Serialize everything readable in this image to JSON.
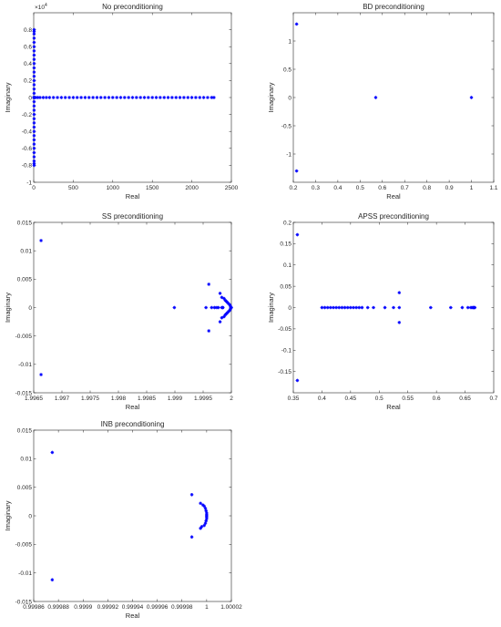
{
  "marker_color": "#0000ff",
  "chart_data": [
    {
      "type": "scatter",
      "title": "No preconditioning",
      "xlabel": "Real",
      "ylabel": "Imaginary",
      "xlim": [
        0,
        2500
      ],
      "ylim": [
        -10000,
        10000
      ],
      "xticks": [
        0,
        500,
        1000,
        1500,
        2000,
        2500
      ],
      "xtick_labels": [
        "0",
        "500",
        "1000",
        "1500",
        "2000",
        "2500"
      ],
      "yticks": [
        -10000,
        -8000,
        -6000,
        -4000,
        -2000,
        0,
        2000,
        4000,
        6000,
        8000
      ],
      "ytick_labels": [
        "-1",
        "-0.8",
        "-0.6",
        "-0.4",
        "-0.2",
        "0",
        "0.2",
        "0.4",
        "0.6",
        "0.8"
      ],
      "y_exponent": "10^4",
      "description_hint": "imaginary axis eigenvalues near Re≈0 spanning Im ±8000; real eigenvalues on Im=0 spanning Re 0–2300",
      "series": [
        {
          "x": [
            1,
            3,
            5,
            8,
            12,
            25,
            50,
            80,
            120,
            160,
            200,
            250,
            300,
            350,
            400,
            450,
            500,
            550,
            600,
            650,
            700,
            750,
            800,
            850,
            900,
            950,
            1000,
            1050,
            1100,
            1150,
            1200,
            1250,
            1300,
            1350,
            1400,
            1450,
            1500,
            1550,
            1600,
            1650,
            1700,
            1750,
            1800,
            1850,
            1900,
            1950,
            2000,
            2050,
            2100,
            2150,
            2200,
            2250,
            2280
          ],
          "y": [
            0,
            0,
            0,
            0,
            0,
            0,
            0,
            0,
            0,
            0,
            0,
            0,
            0,
            0,
            0,
            0,
            0,
            0,
            0,
            0,
            0,
            0,
            0,
            0,
            0,
            0,
            0,
            0,
            0,
            0,
            0,
            0,
            0,
            0,
            0,
            0,
            0,
            0,
            0,
            0,
            0,
            0,
            0,
            0,
            0,
            0,
            0,
            0,
            0,
            0,
            0,
            0,
            0
          ]
        },
        {
          "x": [
            5,
            5,
            5,
            5,
            5,
            5,
            5,
            5,
            5,
            5,
            5,
            5,
            5,
            5,
            5,
            5,
            5,
            5,
            5,
            5,
            5,
            5,
            5,
            5,
            5,
            5,
            5,
            5,
            5,
            5,
            5,
            5,
            5,
            5
          ],
          "y": [
            8000,
            7500,
            7000,
            6500,
            6000,
            5500,
            5000,
            4500,
            4000,
            3500,
            3000,
            2500,
            2000,
            1500,
            1000,
            500,
            -500,
            -1000,
            -1500,
            -2000,
            -2500,
            -3000,
            -3500,
            -4000,
            -4500,
            -5000,
            -5500,
            -6000,
            -6500,
            -7000,
            -7500,
            -8000,
            7800,
            -7800
          ]
        }
      ]
    },
    {
      "type": "scatter",
      "title": "BD preconditioning",
      "xlabel": "Real",
      "ylabel": "Imaginary",
      "xlim": [
        0.2,
        1.1
      ],
      "ylim": [
        -1.5,
        1.5
      ],
      "xticks": [
        0.2,
        0.3,
        0.4,
        0.5,
        0.6,
        0.7,
        0.8,
        0.9,
        1,
        1.1
      ],
      "xtick_labels": [
        "0.2",
        "0.3",
        "0.4",
        "0.5",
        "0.6",
        "0.7",
        "0.8",
        "0.9",
        "1",
        "1.1"
      ],
      "yticks": [
        -1,
        -0.5,
        0,
        0.5,
        1
      ],
      "ytick_labels": [
        "-1",
        "-0.5",
        "0",
        "0.5",
        "1"
      ],
      "series": [
        {
          "x": [
            0.215,
            0.215,
            0.57,
            1.0
          ],
          "y": [
            1.3,
            -1.3,
            0,
            0
          ]
        }
      ]
    },
    {
      "type": "scatter",
      "title": "SS preconditioning",
      "xlabel": "Real",
      "ylabel": "Imaginary",
      "xlim": [
        1.9965,
        2
      ],
      "ylim": [
        -0.015,
        0.015
      ],
      "xticks": [
        1.9965,
        1.997,
        1.9975,
        1.998,
        1.9985,
        1.999,
        1.9995,
        2
      ],
      "xtick_labels": [
        "1.9965",
        "1.997",
        "1.9975",
        "1.998",
        "1.9985",
        "1.999",
        "1.9995",
        "2"
      ],
      "yticks": [
        -0.015,
        -0.01,
        -0.005,
        0,
        0.005,
        0.01,
        0.015
      ],
      "ytick_labels": [
        "-0.015",
        "-0.01",
        "-0.005",
        "0",
        "0.005",
        "0.01",
        "0.015"
      ],
      "series": [
        {
          "x": [
            1.99663,
            1.99663,
            1.99899,
            1.99955,
            1.9996,
            1.9996,
            1.99965,
            1.9997,
            1.99974,
            1.99977,
            1.9998,
            1.9998,
            1.99983,
            1.99983,
            1.99985,
            1.99987,
            1.99989,
            1.99991,
            1.99993,
            1.99995,
            1.99997,
            1.99998,
            1.99999,
            2.0,
            1.99999,
            1.99998,
            1.99997,
            1.99995,
            1.99993,
            1.99991,
            1.99989,
            1.99987,
            1.99985,
            1.99983
          ],
          "y": [
            0.0118,
            -0.0118,
            0,
            0,
            0.0041,
            -0.0041,
            0,
            0,
            0,
            0,
            0.0025,
            -0.0025,
            0.0018,
            -0.0018,
            0,
            0.0016,
            0.0013,
            0.0011,
            0.0009,
            0.0007,
            0.0005,
            0.0003,
            0.0001,
            0,
            -0.0001,
            -0.0003,
            -0.0005,
            -0.0007,
            -0.0009,
            -0.0011,
            -0.0013,
            -0.0016,
            0,
            0
          ]
        }
      ]
    },
    {
      "type": "scatter",
      "title": "APSS preconditioning",
      "xlabel": "Real",
      "ylabel": "Imaginary",
      "xlim": [
        0.35,
        0.7
      ],
      "ylim": [
        -0.2,
        0.2
      ],
      "xticks": [
        0.35,
        0.4,
        0.45,
        0.5,
        0.55,
        0.6,
        0.65,
        0.7
      ],
      "xtick_labels": [
        "0.35",
        "0.4",
        "0.45",
        "0.5",
        "0.55",
        "0.6",
        "0.65",
        "0.7"
      ],
      "yticks": [
        -0.15,
        -0.1,
        -0.05,
        0,
        0.05,
        0.1,
        0.15,
        0.2
      ],
      "ytick_labels": [
        "-0.15",
        "-0.1",
        "-0.05",
        "0",
        "0.05",
        "0.1",
        "0.15",
        "0.2"
      ],
      "series": [
        {
          "x": [
            0.357,
            0.357,
            0.4,
            0.405,
            0.41,
            0.415,
            0.42,
            0.425,
            0.43,
            0.435,
            0.44,
            0.445,
            0.45,
            0.455,
            0.46,
            0.465,
            0.47,
            0.48,
            0.49,
            0.51,
            0.525,
            0.535,
            0.535,
            0.535,
            0.59,
            0.625,
            0.645,
            0.655,
            0.66,
            0.662,
            0.664,
            0.665,
            0.666,
            0.667
          ],
          "y": [
            0.171,
            -0.171,
            0,
            0,
            0,
            0,
            0,
            0,
            0,
            0,
            0,
            0,
            0,
            0,
            0,
            0,
            0,
            0,
            0,
            0,
            0,
            0.035,
            -0.035,
            0,
            0,
            0,
            0,
            0,
            0,
            0,
            0,
            0,
            0,
            0
          ]
        }
      ]
    },
    {
      "type": "scatter",
      "title": "INB preconditioning",
      "xlabel": "Real",
      "ylabel": "Imaginary",
      "xlim": [
        0.99986,
        1.00002
      ],
      "ylim": [
        -0.015,
        0.015
      ],
      "xticks": [
        0.99986,
        0.99988,
        0.9999,
        0.99992,
        0.99994,
        0.99996,
        0.99998,
        1,
        1.00002
      ],
      "xtick_labels": [
        "0.99986",
        "0.99988",
        "0.9999",
        "0.99992",
        "0.99994",
        "0.99996",
        "0.99998",
        "1",
        "1.00002"
      ],
      "yticks": [
        -0.015,
        -0.01,
        -0.005,
        0,
        0.005,
        0.01,
        0.015
      ],
      "ytick_labels": [
        "-0.015",
        "-0.01",
        "-0.005",
        "0",
        "0.005",
        "0.01",
        "0.015"
      ],
      "series": [
        {
          "x": [
            0.999875,
            0.999875,
            0.999988,
            0.999988,
            0.999995,
            0.999995,
            0.999998,
            0.999999,
            0.9999995,
            1.0,
            1.0,
            1.0,
            1.0,
            1.0,
            0.9999995,
            0.999999,
            0.999998,
            0.999997,
            0.999996
          ],
          "y": [
            0.0111,
            -0.0112,
            0.0037,
            -0.0037,
            0.0022,
            -0.0022,
            0.0017,
            0.0013,
            0.0009,
            0.0005,
            0.0002,
            0,
            -0.0002,
            -0.0005,
            -0.0009,
            -0.0013,
            -0.0017,
            0.0019,
            -0.0019
          ]
        }
      ]
    }
  ]
}
